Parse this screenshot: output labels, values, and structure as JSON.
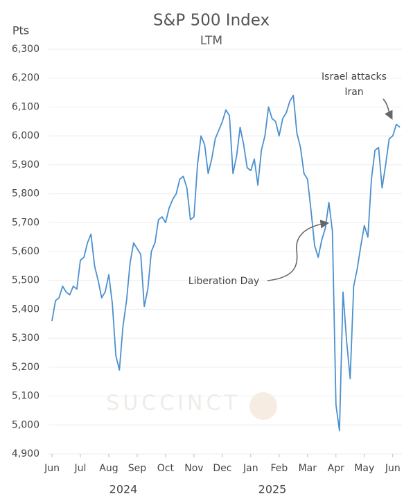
{
  "chart_data": {
    "type": "line",
    "title": "S&P 500 Index",
    "subtitle": "LTM",
    "y_label": "Pts",
    "watermark": "SUCCINCT",
    "categories": [
      "Jun",
      null,
      null,
      null,
      null,
      null,
      null,
      null,
      "Jul",
      null,
      null,
      null,
      null,
      null,
      null,
      null,
      "Aug",
      null,
      null,
      null,
      null,
      null,
      null,
      null,
      "Sep",
      null,
      null,
      null,
      null,
      null,
      null,
      null,
      "Oct",
      null,
      null,
      null,
      null,
      null,
      null,
      null,
      "Nov",
      null,
      null,
      null,
      null,
      null,
      null,
      null,
      "Dec",
      null,
      null,
      null,
      null,
      null,
      null,
      null,
      "Jan",
      null,
      null,
      null,
      null,
      null,
      null,
      null,
      "Feb",
      null,
      null,
      null,
      null,
      null,
      null,
      null,
      "Mar",
      null,
      null,
      null,
      null,
      null,
      null,
      null,
      "Apr",
      null,
      null,
      null,
      null,
      null,
      null,
      null,
      "May",
      null,
      null,
      null,
      null,
      null,
      null,
      null,
      "Jun",
      null,
      null
    ],
    "year_labels": [
      "2024",
      "2025"
    ],
    "values": [
      5360,
      5430,
      5440,
      5480,
      5460,
      5450,
      5480,
      5470,
      5570,
      5580,
      5630,
      5660,
      5550,
      5500,
      5440,
      5460,
      5520,
      5420,
      5240,
      5190,
      5340,
      5430,
      5560,
      5630,
      5610,
      5590,
      5410,
      5470,
      5600,
      5630,
      5710,
      5720,
      5700,
      5750,
      5780,
      5800,
      5850,
      5860,
      5820,
      5710,
      5720,
      5900,
      6000,
      5970,
      5870,
      5920,
      5990,
      6020,
      6050,
      6090,
      6070,
      5870,
      5930,
      6030,
      5970,
      5890,
      5880,
      5920,
      5830,
      5950,
      6000,
      6100,
      6060,
      6050,
      6000,
      6060,
      6080,
      6120,
      6140,
      6010,
      5960,
      5870,
      5850,
      5740,
      5620,
      5580,
      5640,
      5680,
      5770,
      5670,
      5070,
      4980,
      5460,
      5290,
      5160,
      5480,
      5540,
      5620,
      5690,
      5650,
      5850,
      5950,
      5960,
      5820,
      5900,
      5990,
      6000,
      6040,
      6030
    ],
    "color": "#4a90d0",
    "ylim": [
      4900,
      6300
    ],
    "yticks": [
      {
        "value": 4900,
        "label": "4,900"
      },
      {
        "value": 5000,
        "label": "5,000"
      },
      {
        "value": 5100,
        "label": "5,100"
      },
      {
        "value": 5200,
        "label": "5,200"
      },
      {
        "value": 5300,
        "label": "5,300"
      },
      {
        "value": 5400,
        "label": "5,400"
      },
      {
        "value": 5500,
        "label": "5,500"
      },
      {
        "value": 5600,
        "label": "5,600"
      },
      {
        "value": 5700,
        "label": "5,700"
      },
      {
        "value": 5800,
        "label": "5,800"
      },
      {
        "value": 5900,
        "label": "5,900"
      },
      {
        "value": 6000,
        "label": "6,000"
      },
      {
        "value": 6100,
        "label": "6,100"
      },
      {
        "value": 6200,
        "label": "6,200"
      },
      {
        "value": 6300,
        "label": "6,300"
      }
    ],
    "grid": true,
    "annotations": [
      {
        "lines": [
          "Liberation Day"
        ]
      },
      {
        "lines": [
          "Israel attacks",
          "Iran"
        ]
      }
    ]
  }
}
